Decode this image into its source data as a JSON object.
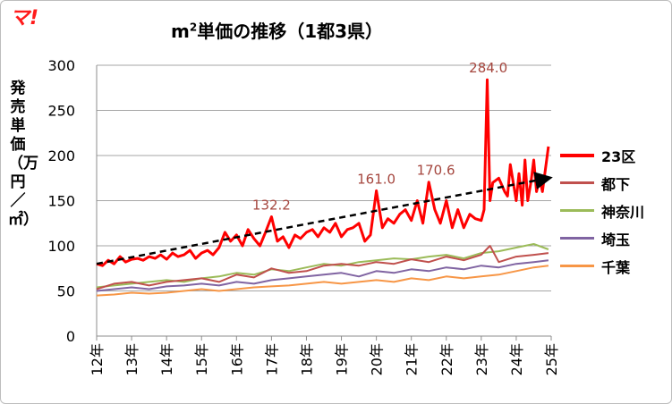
{
  "logo": {
    "text": "マ!",
    "color": "#ff1a1a"
  },
  "chart_data": {
    "type": "line",
    "title": "m²単価の推移（1都3県）",
    "title_main": "m",
    "title_sup": "2",
    "title_rest": "単価の推移（1都3県）",
    "ylabel": "発売単価（万円／㎡）",
    "xlabel": "",
    "ylim": [
      0,
      300
    ],
    "yticks": [
      0,
      50,
      100,
      150,
      200,
      250,
      300
    ],
    "xticks": [
      "12年",
      "13年",
      "14年",
      "15年",
      "16年",
      "17年",
      "18年",
      "19年",
      "20年",
      "21年",
      "22年",
      "23年",
      "24年",
      "25年"
    ],
    "xlim": [
      2012,
      2025
    ],
    "grid": true,
    "legend_position": "right",
    "annotations": [
      {
        "text": "132.2",
        "x": 2017.0,
        "y": 132.2
      },
      {
        "text": "161.0",
        "x": 2020.0,
        "y": 161.0
      },
      {
        "text": "170.6",
        "x": 2021.7,
        "y": 170.6
      },
      {
        "text": "284.0",
        "x": 2023.2,
        "y": 284.0
      }
    ],
    "trendline": {
      "series": "23区",
      "x": [
        2012.0,
        2024.92
      ],
      "y": [
        80,
        175
      ],
      "style": "dashed",
      "color": "#000000"
    },
    "series": [
      {
        "name": "23区",
        "color": "#ff0000",
        "width": 3,
        "x": [
          2012.0,
          2012.17,
          2012.33,
          2012.5,
          2012.67,
          2012.83,
          2013.0,
          2013.17,
          2013.33,
          2013.5,
          2013.67,
          2013.83,
          2014.0,
          2014.17,
          2014.33,
          2014.5,
          2014.67,
          2014.83,
          2015.0,
          2015.17,
          2015.33,
          2015.5,
          2015.67,
          2015.83,
          2016.0,
          2016.17,
          2016.33,
          2016.5,
          2016.67,
          2016.83,
          2017.0,
          2017.17,
          2017.33,
          2017.5,
          2017.67,
          2017.83,
          2018.0,
          2018.17,
          2018.33,
          2018.5,
          2018.67,
          2018.83,
          2019.0,
          2019.17,
          2019.33,
          2019.5,
          2019.67,
          2019.83,
          2020.0,
          2020.17,
          2020.33,
          2020.5,
          2020.67,
          2020.83,
          2021.0,
          2021.17,
          2021.33,
          2021.5,
          2021.67,
          2021.83,
          2022.0,
          2022.17,
          2022.33,
          2022.5,
          2022.67,
          2022.83,
          2023.0,
          2023.08,
          2023.17,
          2023.25,
          2023.33,
          2023.5,
          2023.67,
          2023.75,
          2023.83,
          2024.0,
          2024.08,
          2024.17,
          2024.25,
          2024.33,
          2024.42,
          2024.5,
          2024.58,
          2024.67,
          2024.75,
          2024.92
        ],
        "values": [
          80,
          78,
          84,
          80,
          88,
          82,
          85,
          86,
          84,
          88,
          86,
          90,
          85,
          92,
          88,
          90,
          95,
          86,
          92,
          95,
          90,
          98,
          115,
          105,
          112,
          100,
          118,
          108,
          100,
          115,
          132.2,
          105,
          110,
          98,
          112,
          108,
          115,
          118,
          110,
          120,
          115,
          125,
          110,
          118,
          120,
          125,
          105,
          112,
          161.0,
          120,
          130,
          125,
          135,
          140,
          128,
          150,
          125,
          170.6,
          140,
          125,
          150,
          120,
          140,
          120,
          135,
          130,
          128,
          140,
          284.0,
          150,
          170,
          175,
          160,
          155,
          190,
          150,
          180,
          145,
          195,
          150,
          170,
          195,
          160,
          175,
          160,
          210
        ]
      },
      {
        "name": "都下",
        "color": "#c0504d",
        "width": 2,
        "x": [
          2012.0,
          2012.5,
          2013.0,
          2013.5,
          2014.0,
          2014.5,
          2015.0,
          2015.5,
          2016.0,
          2016.5,
          2017.0,
          2017.5,
          2018.0,
          2018.5,
          2019.0,
          2019.5,
          2020.0,
          2020.5,
          2021.0,
          2021.5,
          2022.0,
          2022.5,
          2023.0,
          2023.25,
          2023.5,
          2024.0,
          2024.5,
          2024.92
        ],
        "values": [
          52,
          58,
          60,
          56,
          60,
          62,
          64,
          60,
          68,
          65,
          75,
          70,
          72,
          78,
          80,
          78,
          82,
          80,
          85,
          82,
          88,
          84,
          90,
          100,
          82,
          88,
          90,
          92
        ]
      },
      {
        "name": "神奈川",
        "color": "#9bbb59",
        "width": 2,
        "x": [
          2012.0,
          2012.5,
          2013.0,
          2013.5,
          2014.0,
          2014.5,
          2015.0,
          2015.5,
          2016.0,
          2016.5,
          2017.0,
          2017.5,
          2018.0,
          2018.5,
          2019.0,
          2019.5,
          2020.0,
          2020.5,
          2021.0,
          2021.5,
          2022.0,
          2022.5,
          2023.0,
          2023.5,
          2024.0,
          2024.5,
          2024.92
        ],
        "values": [
          54,
          56,
          58,
          60,
          62,
          60,
          64,
          66,
          70,
          68,
          74,
          72,
          76,
          80,
          78,
          82,
          84,
          86,
          85,
          88,
          90,
          86,
          92,
          94,
          98,
          102,
          96
        ]
      },
      {
        "name": "埼玉",
        "color": "#8064a2",
        "width": 2,
        "x": [
          2012.0,
          2012.5,
          2013.0,
          2013.5,
          2014.0,
          2014.5,
          2015.0,
          2015.5,
          2016.0,
          2016.5,
          2017.0,
          2017.5,
          2018.0,
          2018.5,
          2019.0,
          2019.5,
          2020.0,
          2020.5,
          2021.0,
          2021.5,
          2022.0,
          2022.5,
          2023.0,
          2023.5,
          2024.0,
          2024.5,
          2024.92
        ],
        "values": [
          50,
          52,
          54,
          52,
          55,
          56,
          58,
          56,
          60,
          58,
          62,
          64,
          66,
          68,
          70,
          66,
          72,
          70,
          74,
          72,
          76,
          74,
          78,
          76,
          80,
          82,
          84
        ]
      },
      {
        "name": "千葉",
        "color": "#f79646",
        "width": 2,
        "x": [
          2012.0,
          2012.5,
          2013.0,
          2013.5,
          2014.0,
          2014.5,
          2015.0,
          2015.5,
          2016.0,
          2016.5,
          2017.0,
          2017.5,
          2018.0,
          2018.5,
          2019.0,
          2019.5,
          2020.0,
          2020.5,
          2021.0,
          2021.5,
          2022.0,
          2022.5,
          2023.0,
          2023.5,
          2024.0,
          2024.5,
          2024.92
        ],
        "values": [
          45,
          46,
          48,
          47,
          48,
          50,
          52,
          50,
          52,
          54,
          55,
          56,
          58,
          60,
          58,
          60,
          62,
          60,
          64,
          62,
          66,
          64,
          66,
          68,
          72,
          76,
          78
        ]
      }
    ]
  }
}
